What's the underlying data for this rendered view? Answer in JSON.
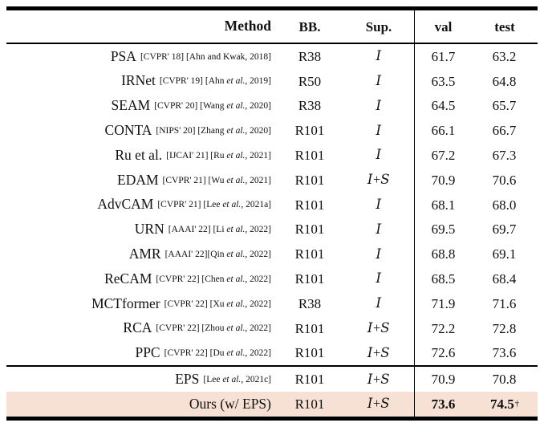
{
  "colors": {
    "highlight": "#f7e0d4",
    "rule": "#000000",
    "text": "#111111"
  },
  "table": {
    "header": {
      "method": "Method",
      "bb": "BB.",
      "sup": "Sup.",
      "val": "val",
      "test": "test"
    },
    "rows": [
      {
        "name": "PSA",
        "cite": "[CVPR' 18] [Ahn and Kwak, 2018]",
        "bb": "R38",
        "sup": "I",
        "val": "61.7",
        "test": "63.2",
        "dagger": "",
        "bold": false,
        "highlight": false
      },
      {
        "name": "IRNet",
        "cite": "[CVPR' 19] [Ahn et al., 2019]",
        "bb": "R50",
        "sup": "I",
        "val": "63.5",
        "test": "64.8",
        "dagger": "",
        "bold": false,
        "highlight": false
      },
      {
        "name": "SEAM",
        "cite": "[CVPR' 20] [Wang et al., 2020]",
        "bb": "R38",
        "sup": "I",
        "val": "64.5",
        "test": "65.7",
        "dagger": "",
        "bold": false,
        "highlight": false
      },
      {
        "name": "CONTA",
        "cite": "[NIPS' 20] [Zhang et al., 2020]",
        "bb": "R101",
        "sup": "I",
        "val": "66.1",
        "test": "66.7",
        "dagger": "",
        "bold": false,
        "highlight": false
      },
      {
        "name": "Ru et al.",
        "cite": "[IJCAI' 21] [Ru et al., 2021]",
        "bb": "R101",
        "sup": "I",
        "val": "67.2",
        "test": "67.3",
        "dagger": "",
        "bold": false,
        "highlight": false
      },
      {
        "name": "EDAM",
        "cite": "[CVPR' 21] [Wu et al., 2021]",
        "bb": "R101",
        "sup": "I + S",
        "val": "70.9",
        "test": "70.6",
        "dagger": "",
        "bold": false,
        "highlight": false
      },
      {
        "name": "AdvCAM",
        "cite": "[CVPR' 21] [Lee et al., 2021a]",
        "bb": "R101",
        "sup": "I",
        "val": "68.1",
        "test": "68.0",
        "dagger": "",
        "bold": false,
        "highlight": false
      },
      {
        "name": "URN",
        "cite": "[AAAI' 22] [Li et al., 2022]",
        "bb": "R101",
        "sup": "I",
        "val": "69.5",
        "test": "69.7",
        "dagger": "",
        "bold": false,
        "highlight": false
      },
      {
        "name": "AMR",
        "cite": "[AAAI' 22][Qin et al., 2022]",
        "bb": "R101",
        "sup": "I",
        "val": "68.8",
        "test": "69.1",
        "dagger": "",
        "bold": false,
        "highlight": false
      },
      {
        "name": "ReCAM",
        "cite": "[CVPR' 22] [Chen et al., 2022]",
        "bb": "R101",
        "sup": "I",
        "val": "68.5",
        "test": "68.4",
        "dagger": "",
        "bold": false,
        "highlight": false
      },
      {
        "name": "MCTformer",
        "cite": "[CVPR' 22] [Xu et al., 2022]",
        "bb": "R38",
        "sup": "I",
        "val": "71.9",
        "test": "71.6",
        "dagger": "",
        "bold": false,
        "highlight": false
      },
      {
        "name": "RCA",
        "cite": "[CVPR' 22] [Zhou et al., 2022]",
        "bb": "R101",
        "sup": "I + S",
        "val": "72.2",
        "test": "72.8",
        "dagger": "",
        "bold": false,
        "highlight": false
      },
      {
        "name": "PPC",
        "cite": "[CVPR' 22] [Du et al., 2022]",
        "bb": "R101",
        "sup": "I + S",
        "val": "72.6",
        "test": "73.6",
        "dagger": "",
        "bold": false,
        "highlight": false
      }
    ],
    "bottom_rows": [
      {
        "name": "EPS",
        "cite": "[Lee et al., 2021c]",
        "bb": "R101",
        "sup": "I + S",
        "val": "70.9",
        "test": "70.8",
        "dagger": "",
        "bold": false,
        "highlight": false
      },
      {
        "name": "Ours (w/ EPS)",
        "cite": "",
        "bb": "R101",
        "sup": "I + S",
        "val": "73.6",
        "test": "74.5",
        "dagger": "†",
        "bold": true,
        "highlight": true
      }
    ]
  }
}
